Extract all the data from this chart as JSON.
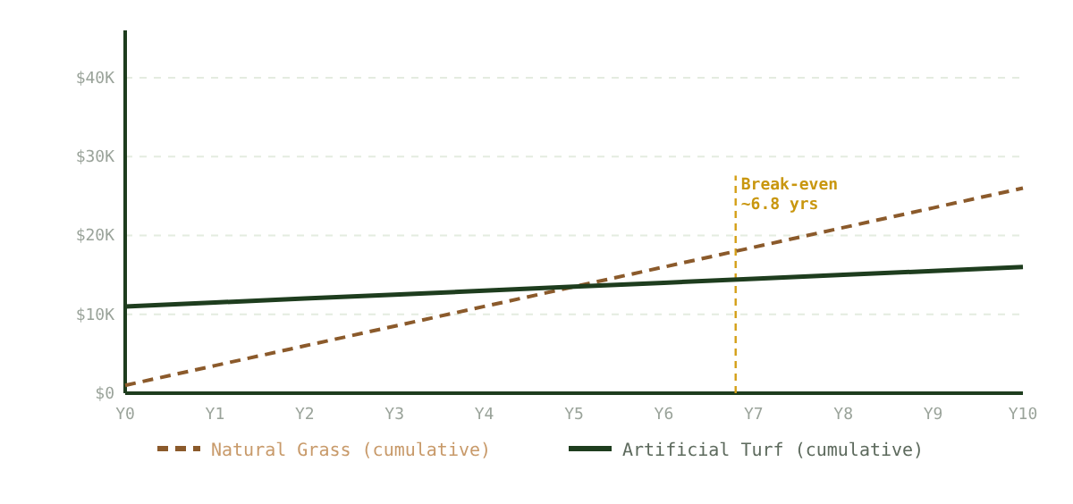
{
  "chart_data": {
    "type": "line",
    "categories": [
      "Y0",
      "Y1",
      "Y2",
      "Y3",
      "Y4",
      "Y5",
      "Y6",
      "Y7",
      "Y8",
      "Y9",
      "Y10"
    ],
    "ylim": [
      0,
      46000
    ],
    "yticks": [
      {
        "value": 0,
        "label": "$0"
      },
      {
        "value": 10000,
        "label": "$10K"
      },
      {
        "value": 20000,
        "label": "$20K"
      },
      {
        "value": 30000,
        "label": "$30K"
      },
      {
        "value": 40000,
        "label": "$40K"
      }
    ],
    "series": [
      {
        "name": "Natural Grass (cumulative)",
        "color": "#8b5a2b",
        "line_style": "dashed",
        "values": [
          1000,
          3500,
          6000,
          8500,
          11000,
          13500,
          16000,
          18500,
          21000,
          23500,
          26000
        ]
      },
      {
        "name": "Artificial Turf (cumulative)",
        "color": "#1e3d1e",
        "line_style": "solid",
        "values": [
          11000,
          11500,
          12000,
          12500,
          13000,
          13500,
          14000,
          14500,
          15000,
          15500,
          16000
        ]
      }
    ],
    "annotations": [
      "Break-even\n~6.8 yrs"
    ],
    "grid": "y",
    "legend": "bottom",
    "marker": "none"
  }
}
